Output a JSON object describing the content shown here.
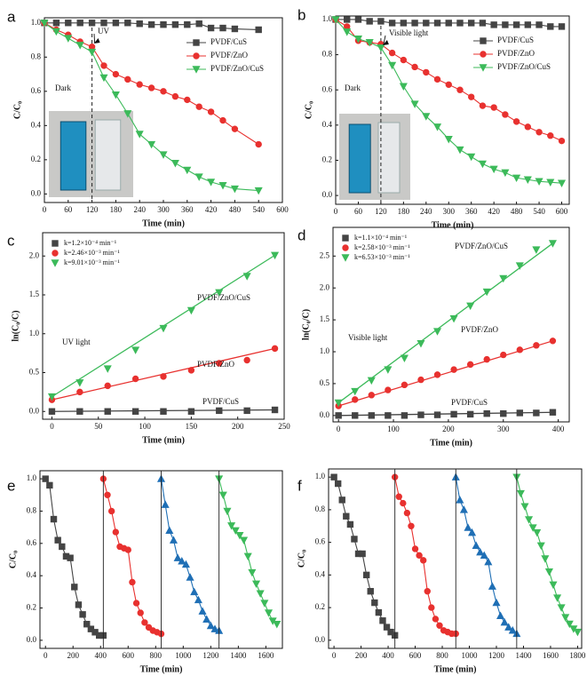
{
  "chart_data": [
    {
      "type": "line",
      "panel": "a",
      "xlabel": "Time (min)",
      "ylabel": "C/C₀",
      "xlim": [
        0,
        600
      ],
      "xticks": [
        0,
        60,
        120,
        180,
        240,
        300,
        360,
        420,
        480,
        540,
        600
      ],
      "ylim": [
        -0.05,
        1.03
      ],
      "yticks": [
        {
          "value": 0,
          "label": "0.0"
        },
        0.2,
        0.4,
        0.6,
        0.8,
        {
          "value": 1,
          "label": "1.0"
        }
      ],
      "vline": 120,
      "legend": "upper right",
      "annotations": [
        "UV",
        "Dark"
      ],
      "series": [
        {
          "name": "PVDF/CuS",
          "color": "#444444",
          "marker": "square",
          "x": [
            0,
            30,
            60,
            90,
            120,
            150,
            180,
            210,
            240,
            270,
            300,
            330,
            360,
            390,
            420,
            450,
            480,
            540
          ],
          "values": [
            1,
            1,
            1,
            1,
            1,
            1,
            1,
            1,
            0.995,
            0.99,
            0.99,
            0.99,
            0.99,
            0.995,
            0.97,
            0.97,
            0.965,
            0.96
          ]
        },
        {
          "name": "PVDF/ZnO",
          "color": "#e8312f",
          "marker": "circle",
          "x": [
            0,
            30,
            60,
            90,
            120,
            150,
            180,
            210,
            240,
            270,
            300,
            330,
            360,
            390,
            420,
            450,
            480,
            540
          ],
          "values": [
            1,
            0.96,
            0.93,
            0.89,
            0.86,
            0.75,
            0.7,
            0.67,
            0.64,
            0.62,
            0.6,
            0.57,
            0.55,
            0.51,
            0.48,
            0.43,
            0.38,
            0.29
          ]
        },
        {
          "name": "PVDF/ZnO/CuS",
          "color": "#3cba5a",
          "marker": "triangle-down",
          "x": [
            0,
            30,
            60,
            90,
            120,
            150,
            180,
            210,
            240,
            270,
            300,
            330,
            360,
            390,
            420,
            450,
            480,
            540
          ],
          "values": [
            1,
            0.95,
            0.91,
            0.87,
            0.83,
            0.68,
            0.58,
            0.47,
            0.35,
            0.29,
            0.23,
            0.18,
            0.14,
            0.1,
            0.07,
            0.05,
            0.03,
            0.02
          ]
        }
      ]
    },
    {
      "type": "line",
      "panel": "b",
      "xlabel": "Time (min)",
      "ylabel": "C/C₀",
      "xlim": [
        0,
        620
      ],
      "xticks": [
        0,
        60,
        120,
        180,
        240,
        300,
        360,
        420,
        480,
        540,
        600
      ],
      "ylim": [
        -0.05,
        1.02
      ],
      "yticks": [
        {
          "value": 0,
          "label": "0.0"
        },
        0.2,
        0.4,
        0.6,
        0.8,
        {
          "value": 1,
          "label": "1.0"
        }
      ],
      "vline": 120,
      "legend": "upper right",
      "annotations": [
        "Visible light",
        "Dark"
      ],
      "series": [
        {
          "name": "PVDF/CuS",
          "color": "#444444",
          "marker": "square",
          "x": [
            0,
            30,
            60,
            90,
            120,
            150,
            180,
            210,
            240,
            270,
            300,
            330,
            360,
            390,
            420,
            450,
            480,
            510,
            540,
            570,
            600
          ],
          "values": [
            1,
            1,
            1,
            0.99,
            0.99,
            0.98,
            0.98,
            0.98,
            0.98,
            0.98,
            0.98,
            0.98,
            0.98,
            0.98,
            0.97,
            0.97,
            0.97,
            0.97,
            0.97,
            0.96,
            0.96
          ]
        },
        {
          "name": "PVDF/ZnO",
          "color": "#e8312f",
          "marker": "circle",
          "x": [
            0,
            30,
            60,
            90,
            120,
            150,
            180,
            210,
            240,
            270,
            300,
            330,
            360,
            390,
            420,
            450,
            480,
            510,
            540,
            570,
            600
          ],
          "values": [
            1,
            0.96,
            0.88,
            0.87,
            0.86,
            0.81,
            0.77,
            0.73,
            0.7,
            0.66,
            0.63,
            0.6,
            0.56,
            0.51,
            0.5,
            0.46,
            0.42,
            0.39,
            0.36,
            0.34,
            0.31
          ]
        },
        {
          "name": "PVDF/ZnO/CuS",
          "color": "#3cba5a",
          "marker": "triangle-down",
          "x": [
            0,
            30,
            60,
            90,
            120,
            150,
            180,
            210,
            240,
            270,
            300,
            330,
            360,
            390,
            420,
            450,
            480,
            510,
            540,
            570,
            600
          ],
          "values": [
            1,
            0.93,
            0.89,
            0.87,
            0.84,
            0.74,
            0.62,
            0.52,
            0.45,
            0.39,
            0.32,
            0.26,
            0.22,
            0.18,
            0.15,
            0.13,
            0.1,
            0.09,
            0.08,
            0.075,
            0.07
          ]
        }
      ]
    },
    {
      "type": "scatter",
      "panel": "c",
      "xlabel": "Time (min)",
      "ylabel": "ln(C₀/C)",
      "xlim": [
        -10,
        250
      ],
      "xticks": [
        0,
        50,
        100,
        150,
        200,
        250
      ],
      "ylim": [
        -0.1,
        2.3
      ],
      "yticks": [
        {
          "value": 0,
          "label": "0.0"
        },
        0.5,
        {
          "value": 1,
          "label": "1.0"
        },
        1.5,
        {
          "value": 2,
          "label": "2.0"
        }
      ],
      "trend_line": true,
      "legend": "upper left",
      "annotations": [
        "PVDF/ZnO/CuS",
        "PVDF/ZnO",
        "PVDF/CuS",
        "UV light"
      ],
      "series": [
        {
          "name": "k=1.2×10⁻⁴ min⁻¹",
          "color": "#444444",
          "marker": "square",
          "x": [
            0,
            30,
            60,
            90,
            120,
            150,
            180,
            210,
            240
          ],
          "values": [
            0,
            0,
            0,
            0,
            0,
            0,
            0.01,
            0.01,
            0.02
          ]
        },
        {
          "name": "k=2.46×10⁻³ min⁻¹",
          "color": "#e8312f",
          "marker": "circle",
          "x": [
            0,
            30,
            60,
            90,
            120,
            150,
            180,
            210,
            240
          ],
          "values": [
            0.15,
            0.25,
            0.33,
            0.42,
            0.45,
            0.53,
            0.62,
            0.66,
            0.81
          ]
        },
        {
          "name": "k=9.01×10⁻³ min⁻¹",
          "color": "#3cba5a",
          "marker": "triangle-down",
          "x": [
            0,
            30,
            60,
            90,
            120,
            150,
            180,
            210,
            240
          ],
          "values": [
            0.19,
            0.37,
            0.55,
            0.79,
            1.07,
            1.3,
            1.53,
            1.74,
            2.01
          ]
        }
      ]
    },
    {
      "type": "scatter",
      "panel": "d",
      "xlabel": "Time (min)",
      "ylabel": "ln(C₀/C)",
      "xlim": [
        -10,
        420
      ],
      "xticks": [
        0,
        100,
        200,
        300,
        400
      ],
      "ylim": [
        -0.1,
        2.95
      ],
      "yticks": [
        {
          "value": 0,
          "label": "0.0"
        },
        0.5,
        {
          "value": 1,
          "label": "1.0"
        },
        1.5,
        {
          "value": 2,
          "label": "2.0"
        },
        2.5
      ],
      "trend_line": true,
      "legend": "upper left",
      "annotations": [
        "PVDF/ZnO/CuS",
        "PVDF/ZnO",
        "Visible light",
        "PVDF/CuS"
      ],
      "series": [
        {
          "name": "k=1.1×10⁻⁴ min⁻¹",
          "color": "#444444",
          "marker": "square",
          "x": [
            0,
            30,
            60,
            90,
            120,
            150,
            180,
            210,
            240,
            270,
            300,
            330,
            360,
            390
          ],
          "values": [
            0,
            0,
            0,
            0,
            0,
            0.01,
            0.01,
            0.02,
            0.02,
            0.03,
            0.03,
            0.04,
            0.04,
            0.05
          ]
        },
        {
          "name": "k=2.58×10⁻³ min⁻¹",
          "color": "#e8312f",
          "marker": "circle",
          "x": [
            0,
            30,
            60,
            90,
            120,
            150,
            180,
            210,
            240,
            270,
            300,
            330,
            360,
            390
          ],
          "values": [
            0.15,
            0.25,
            0.32,
            0.4,
            0.48,
            0.56,
            0.64,
            0.72,
            0.8,
            0.88,
            0.95,
            1.03,
            1.1,
            1.17
          ]
        },
        {
          "name": "k=6.53×10⁻³ min⁻¹",
          "color": "#3cba5a",
          "marker": "triangle-down",
          "x": [
            0,
            30,
            60,
            90,
            120,
            150,
            180,
            210,
            240,
            270,
            300,
            330,
            360,
            390
          ],
          "values": [
            0.2,
            0.38,
            0.55,
            0.72,
            0.9,
            1.13,
            1.32,
            1.52,
            1.72,
            1.94,
            2.15,
            2.35,
            2.6,
            2.7
          ]
        }
      ]
    },
    {
      "type": "line",
      "panel": "e",
      "xlabel": "Time (min)",
      "ylabel": "C/C₀",
      "xlim": [
        -40,
        1720
      ],
      "xticks": [
        0,
        200,
        400,
        600,
        800,
        1000,
        1200,
        1400,
        1600
      ],
      "ylim": [
        -0.05,
        1.05
      ],
      "yticks": [
        {
          "value": 0,
          "label": "0.0"
        },
        0.2,
        0.4,
        0.6,
        0.8,
        {
          "value": 1,
          "label": "1.0"
        }
      ],
      "cycle_lines": true,
      "series": [
        {
          "color": "#444444",
          "marker": "square",
          "x": [
            0,
            30,
            60,
            90,
            120,
            150,
            180,
            210,
            240,
            270,
            300,
            330,
            360,
            390,
            420
          ],
          "values": [
            1,
            0.96,
            0.75,
            0.62,
            0.58,
            0.52,
            0.51,
            0.33,
            0.22,
            0.16,
            0.1,
            0.07,
            0.05,
            0.03,
            0.03
          ]
        },
        {
          "color": "#e8312f",
          "marker": "circle",
          "x": [
            420,
            450,
            480,
            510,
            540,
            570,
            600,
            630,
            660,
            690,
            720,
            750,
            780,
            810,
            840
          ],
          "values": [
            1,
            0.9,
            0.8,
            0.67,
            0.58,
            0.57,
            0.56,
            0.36,
            0.23,
            0.17,
            0.11,
            0.08,
            0.06,
            0.05,
            0.04
          ]
        },
        {
          "color": "#1f6fb5",
          "marker": "triangle-up",
          "x": [
            840,
            870,
            900,
            930,
            960,
            990,
            1020,
            1050,
            1080,
            1110,
            1140,
            1170,
            1200,
            1230,
            1260
          ],
          "values": [
            1,
            0.84,
            0.68,
            0.62,
            0.51,
            0.49,
            0.47,
            0.39,
            0.3,
            0.25,
            0.18,
            0.13,
            0.09,
            0.07,
            0.06
          ]
        },
        {
          "color": "#3cba5a",
          "marker": "triangle-down",
          "x": [
            1260,
            1290,
            1320,
            1350,
            1380,
            1410,
            1440,
            1470,
            1500,
            1530,
            1560,
            1590,
            1620,
            1650,
            1680
          ],
          "values": [
            1,
            0.9,
            0.8,
            0.71,
            0.68,
            0.65,
            0.62,
            0.52,
            0.42,
            0.35,
            0.29,
            0.23,
            0.17,
            0.12,
            0.1
          ]
        }
      ]
    },
    {
      "type": "line",
      "panel": "f",
      "xlabel": "Time (min)",
      "ylabel": "C/C₀",
      "xlim": [
        -40,
        1830
      ],
      "xticks": [
        0,
        200,
        400,
        600,
        800,
        1000,
        1200,
        1400,
        1600,
        1800
      ],
      "ylim": [
        -0.05,
        1.05
      ],
      "yticks": [
        {
          "value": 0,
          "label": "0.0"
        },
        0.2,
        0.4,
        0.6,
        0.8,
        {
          "value": 1,
          "label": "1.0"
        }
      ],
      "cycle_lines": true,
      "series": [
        {
          "color": "#444444",
          "marker": "square",
          "x": [
            0,
            30,
            60,
            90,
            120,
            150,
            180,
            210,
            240,
            270,
            300,
            330,
            360,
            390,
            420,
            450
          ],
          "values": [
            1,
            0.96,
            0.86,
            0.76,
            0.71,
            0.62,
            0.53,
            0.53,
            0.4,
            0.3,
            0.23,
            0.17,
            0.12,
            0.08,
            0.05,
            0.03
          ]
        },
        {
          "color": "#e8312f",
          "marker": "circle",
          "x": [
            450,
            480,
            510,
            540,
            570,
            600,
            630,
            660,
            690,
            720,
            750,
            780,
            810,
            840,
            870,
            900
          ],
          "values": [
            1,
            0.88,
            0.84,
            0.78,
            0.7,
            0.56,
            0.52,
            0.49,
            0.3,
            0.2,
            0.13,
            0.09,
            0.06,
            0.05,
            0.04,
            0.04
          ]
        },
        {
          "color": "#1f6fb5",
          "marker": "triangle-up",
          "x": [
            900,
            930,
            960,
            990,
            1020,
            1050,
            1080,
            1110,
            1140,
            1170,
            1200,
            1230,
            1260,
            1290,
            1320,
            1350
          ],
          "values": [
            1,
            0.86,
            0.8,
            0.69,
            0.66,
            0.58,
            0.54,
            0.52,
            0.48,
            0.33,
            0.23,
            0.15,
            0.11,
            0.08,
            0.06,
            0.04
          ]
        },
        {
          "color": "#3cba5a",
          "marker": "triangle-down",
          "x": [
            1350,
            1380,
            1410,
            1440,
            1470,
            1500,
            1530,
            1560,
            1590,
            1620,
            1650,
            1680,
            1710,
            1740,
            1770,
            1800
          ],
          "values": [
            1,
            0.9,
            0.82,
            0.74,
            0.69,
            0.66,
            0.58,
            0.5,
            0.42,
            0.34,
            0.26,
            0.2,
            0.14,
            0.1,
            0.07,
            0.05
          ]
        }
      ]
    }
  ]
}
